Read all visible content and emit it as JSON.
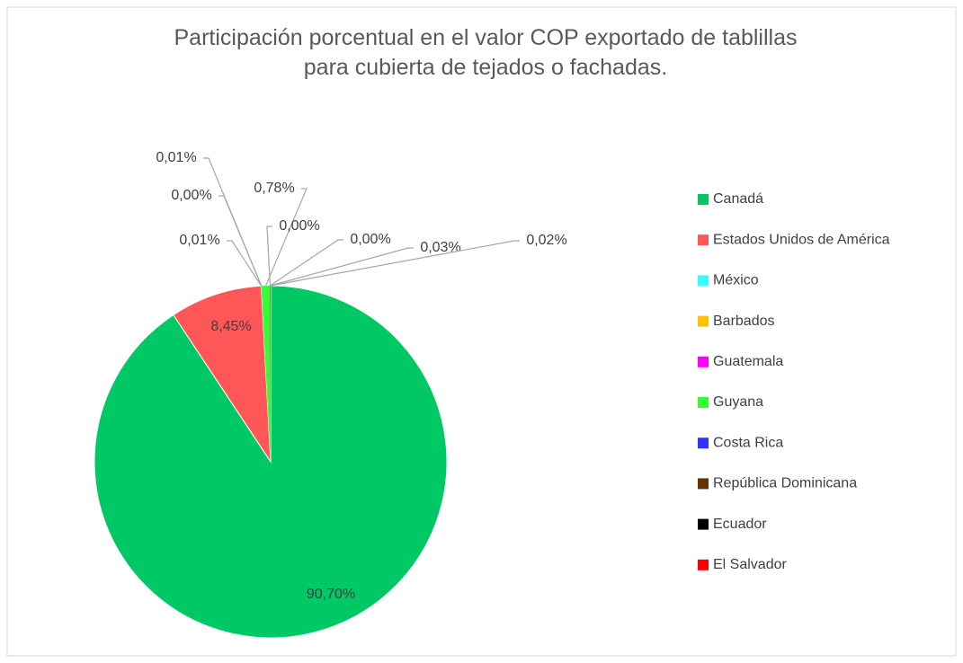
{
  "chart_data": {
    "type": "pie",
    "title": "Participación porcentual en el valor COP exportado de tablillas para cubierta de tejados o fachadas.",
    "categories": [
      "Canadá",
      "Estados Unidos de América",
      "México",
      "Barbados",
      "Guatemala",
      "Guyana",
      "Costa Rica",
      "República Dominicana",
      "Ecuador",
      "El Salvador"
    ],
    "values": [
      90.7,
      8.45,
      0.01,
      0.0,
      0.01,
      0.78,
      0.0,
      0.0,
      0.03,
      0.02
    ],
    "value_labels": [
      "90,70%",
      "8,45%",
      "0,01%",
      "0,00%",
      "0,01%",
      "0,78%",
      "0,00%",
      "0,00%",
      "0,03%",
      "0,02%"
    ],
    "colors": [
      "#00c864",
      "#ff5757",
      "#33ffff",
      "#ffc000",
      "#ff00ff",
      "#33ff33",
      "#3333ff",
      "#663300",
      "#000000",
      "#ff0000"
    ],
    "legend": "right"
  }
}
